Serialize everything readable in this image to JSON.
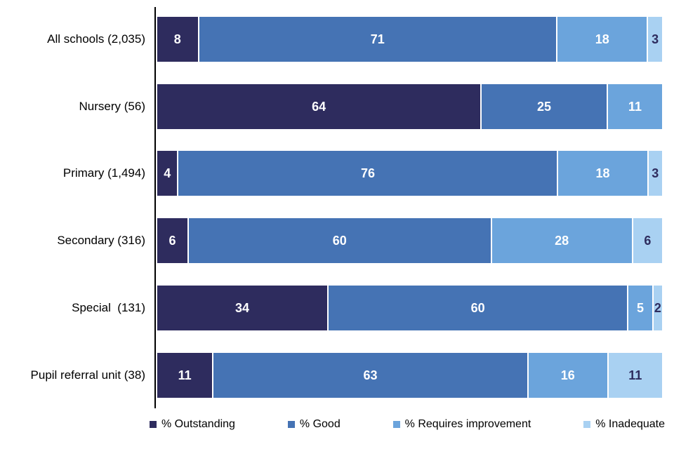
{
  "chart_data": {
    "type": "bar",
    "orientation": "horizontal-stacked",
    "title": "",
    "xlabel": "",
    "ylabel": "",
    "xlim": [
      0,
      100
    ],
    "grid": false,
    "legend_position": "bottom",
    "value_labels": "inside-center",
    "value_label_color_default": "#ffffff",
    "value_label_color_on_inadequate": "#2E2C5E",
    "categories": [
      "All schools (2,035)",
      "Nursery (56)",
      "Primary (1,494)",
      "Secondary (316)",
      "Special  (131)",
      "Pupil referral unit (38)"
    ],
    "series": [
      {
        "name": "% Outstanding",
        "color": "#2E2C5E",
        "values": [
          8,
          64,
          4,
          6,
          34,
          11
        ]
      },
      {
        "name": "% Good",
        "color": "#4573B4",
        "values": [
          71,
          25,
          76,
          60,
          60,
          63
        ]
      },
      {
        "name": "% Requires improvement",
        "color": "#6BA4DC",
        "values": [
          18,
          11,
          18,
          28,
          5,
          16
        ]
      },
      {
        "name": "% Inadequate",
        "color": "#A9D1F2",
        "values": [
          3,
          0,
          3,
          6,
          2,
          11
        ]
      }
    ]
  }
}
